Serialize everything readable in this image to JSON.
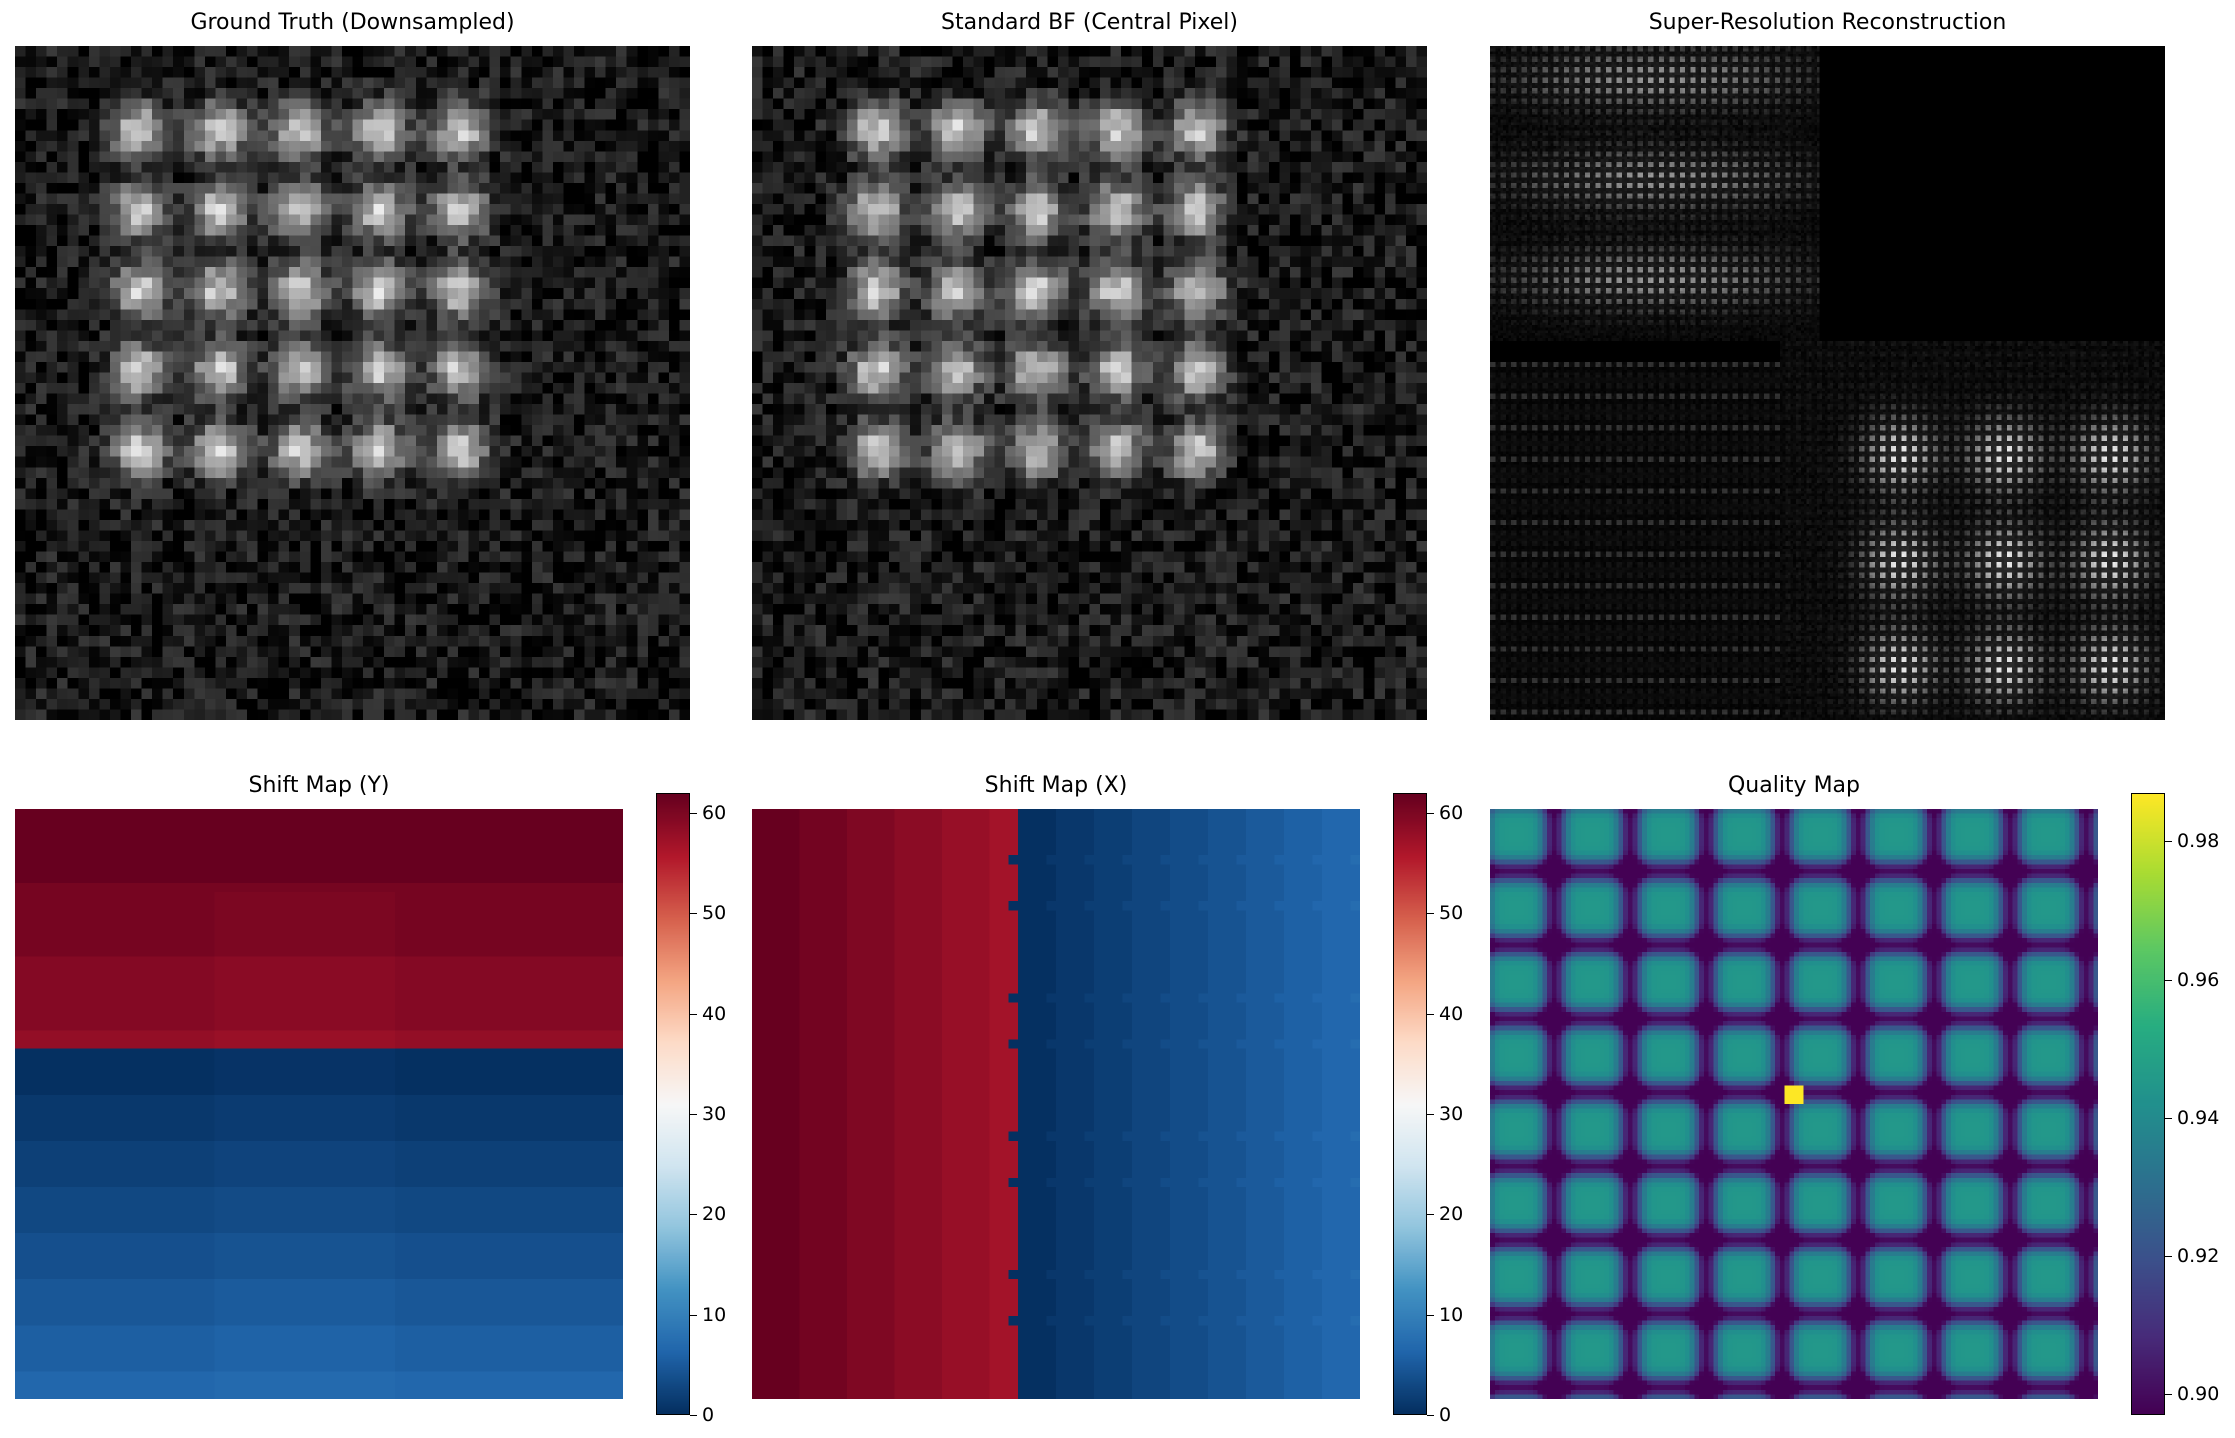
{
  "figure": {
    "panels": [
      {
        "id": "gt",
        "title": "Ground Truth (Downsampled)"
      },
      {
        "id": "bf",
        "title": "Standard BF (Central Pixel)"
      },
      {
        "id": "sr",
        "title": "Super-Resolution Reconstruction"
      },
      {
        "id": "sy",
        "title": "Shift Map (Y)"
      },
      {
        "id": "sx",
        "title": "Shift Map (X)"
      },
      {
        "id": "q",
        "title": "Quality Map"
      }
    ]
  },
  "chart_data": [
    {
      "type": "heatmap",
      "title": "Ground Truth (Downsampled)",
      "colormap": "gray",
      "grid": false,
      "axes": "off",
      "pattern": "5x5 array of bright gaussian spots on noisy dark background"
    },
    {
      "type": "heatmap",
      "title": "Standard BF (Central Pixel)",
      "colormap": "gray",
      "grid": false,
      "axes": "off",
      "pattern": "5x5 array of bright gaussian spots on noisy dark background"
    },
    {
      "type": "heatmap",
      "title": "Super-Resolution Reconstruction",
      "colormap": "gray",
      "grid": false,
      "axes": "off",
      "pattern": "four quadrants; top-right empty, bottom-right shows 3x3 spots with fine dot texture"
    },
    {
      "type": "heatmap",
      "title": "Shift Map (Y)",
      "colormap": "RdBu_r",
      "grid": false,
      "axes": "off",
      "colorbar": {
        "min": 0,
        "max": 62,
        "ticks": [
          0,
          10,
          20,
          30,
          40,
          50,
          60
        ]
      },
      "pattern": "top half ~57-62, bottom half ~0-6 increasing downward"
    },
    {
      "type": "heatmap",
      "title": "Shift Map (X)",
      "colormap": "RdBu_r",
      "grid": false,
      "axes": "off",
      "colorbar": {
        "min": 0,
        "max": 62,
        "ticks": [
          0,
          10,
          20,
          30,
          40,
          50,
          60
        ]
      },
      "pattern": "left ~44% ~57-62, right ~0-8 increasing rightward"
    },
    {
      "type": "heatmap",
      "title": "Quality Map",
      "colormap": "viridis",
      "grid": false,
      "axes": "off",
      "colorbar": {
        "min": 0.897,
        "max": 0.987,
        "ticks": [
          0.9,
          0.92,
          0.94,
          0.96,
          0.98
        ],
        "tick_labels": [
          "0.90",
          "0.92",
          "0.94",
          "0.96",
          "0.98"
        ]
      },
      "pattern": "8x8 grid of ~0.945 peaks separated by ~0.90 minima; single 0.987 pixel near center"
    }
  ]
}
